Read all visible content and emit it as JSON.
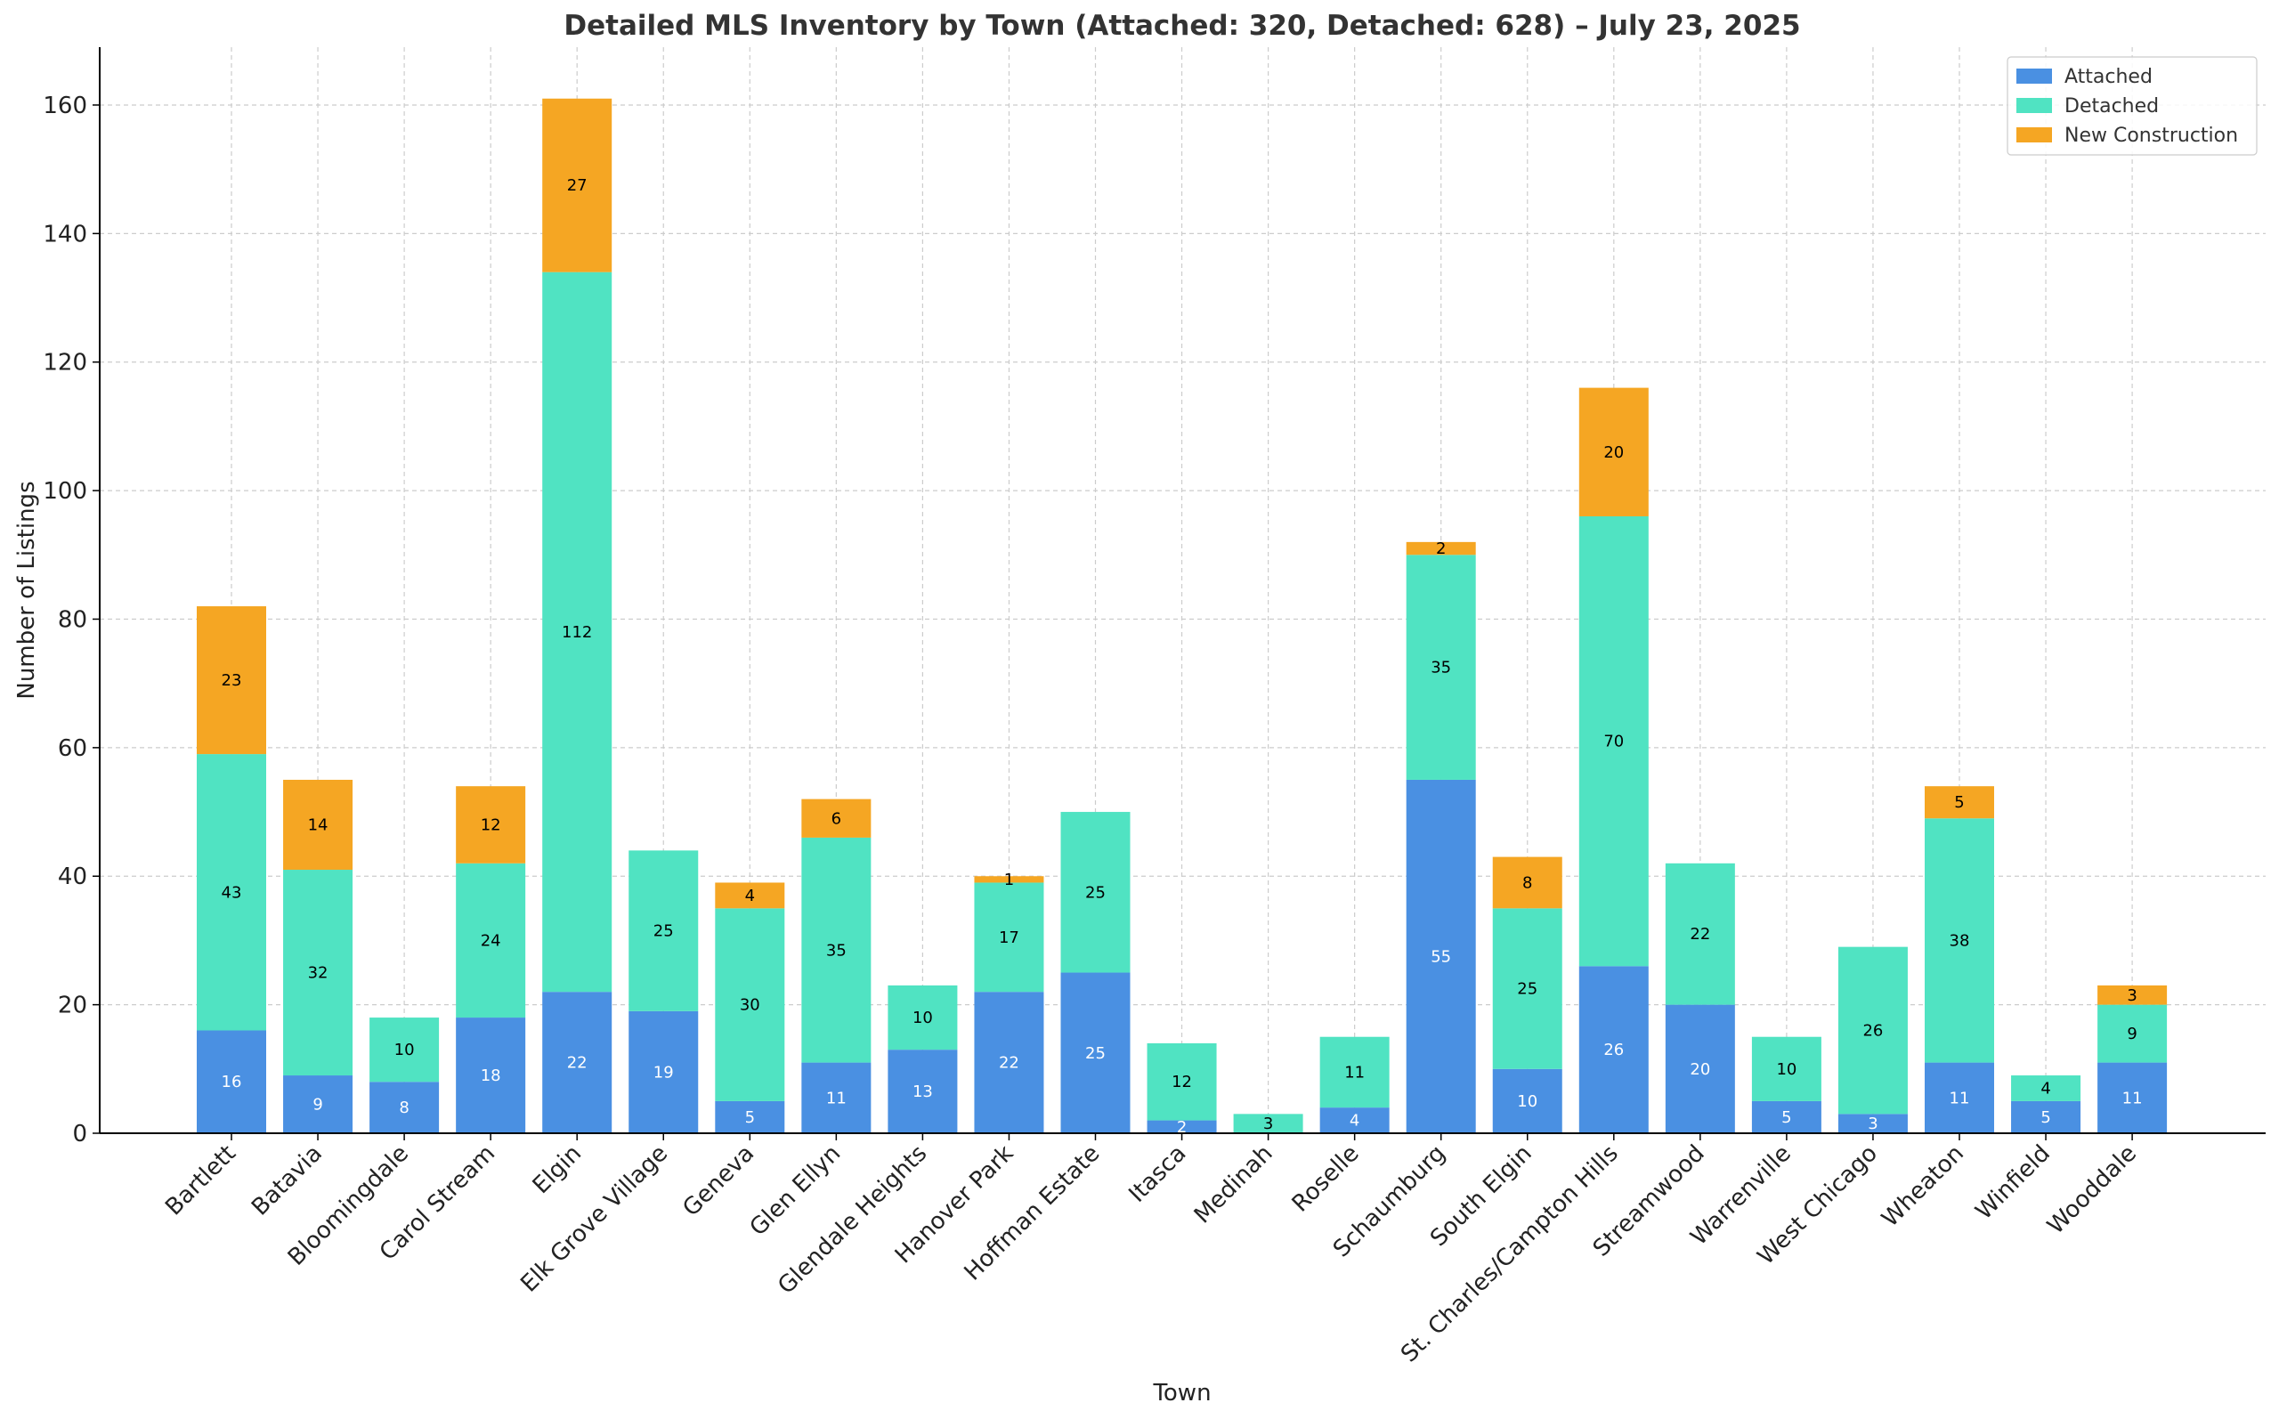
{
  "chart_data": {
    "type": "bar",
    "stacked": true,
    "title": "Detailed MLS Inventory by Town (Attached: 320, Detached: 628) – July 23, 2025",
    "xlabel": "Town",
    "ylabel": "Number of Listings",
    "ylim": [
      0,
      169
    ],
    "yticks": [
      0,
      20,
      40,
      60,
      80,
      100,
      120,
      140,
      160
    ],
    "grid": true,
    "legend_position": "top-right",
    "categories": [
      "Bartlett",
      "Batavia",
      "Bloomingdale",
      "Carol Stream",
      "Elgin",
      "Elk Grove Village",
      "Geneva",
      "Glen Ellyn",
      "Glendale Heights",
      "Hanover Park",
      "Hoffman Estate",
      "Itasca",
      "Medinah",
      "Roselle",
      "Schaumburg",
      "South Elgin",
      "St. Charles/Campton Hills",
      "Streamwood",
      "Warrenville",
      "West Chicago",
      "Wheaton",
      "Winfield",
      "Wooddale"
    ],
    "series": [
      {
        "name": "Attached",
        "color": "#4a90e2",
        "label_color": "#ffffff",
        "values": [
          16,
          9,
          8,
          18,
          22,
          19,
          5,
          11,
          13,
          22,
          25,
          2,
          0,
          4,
          55,
          10,
          26,
          20,
          5,
          3,
          11,
          5,
          11
        ]
      },
      {
        "name": "Detached",
        "color": "#50e3c2",
        "label_color": "#000000",
        "values": [
          43,
          32,
          10,
          24,
          112,
          25,
          30,
          35,
          10,
          17,
          25,
          12,
          3,
          11,
          35,
          25,
          70,
          22,
          10,
          26,
          38,
          4,
          9
        ]
      },
      {
        "name": "New Construction",
        "color": "#f5a623",
        "label_color": "#000000",
        "values": [
          23,
          14,
          0,
          12,
          27,
          0,
          4,
          6,
          0,
          1,
          0,
          0,
          0,
          0,
          2,
          8,
          20,
          0,
          0,
          0,
          5,
          0,
          3
        ]
      }
    ]
  }
}
